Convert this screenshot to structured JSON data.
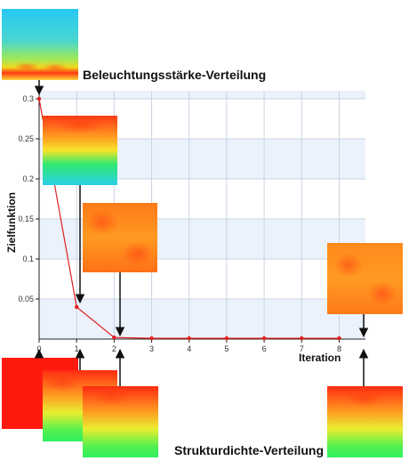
{
  "chart_data": {
    "type": "line",
    "xlabel": "Iteration",
    "ylabel": "Zielfunktion",
    "xlim": [
      0,
      8.7
    ],
    "ylim": [
      0,
      0.31
    ],
    "grid": true,
    "x_ticks": [
      "0",
      "1",
      "2",
      "3",
      "4",
      "5",
      "6",
      "7",
      "8"
    ],
    "y_ticks": [
      "0.05",
      "0.1",
      "0.15",
      "0.2",
      "0.25",
      "0.3"
    ],
    "series": [
      {
        "x": [
          0,
          1,
          2,
          3,
          4,
          5,
          6,
          7,
          8
        ],
        "values": [
          0.3,
          0.04,
          0.002,
          0.001,
          0.001,
          0.001,
          0.001,
          0.001,
          0.001
        ],
        "color": "#e02020"
      }
    ],
    "annotations": [
      {
        "text": "Beleuchtungsstärke-Verteilung"
      },
      {
        "text": "Strukturdichte-Verteilung"
      }
    ],
    "colors": {
      "band": "#ebf2fb",
      "grid": "#c8d4e4",
      "line": "#e02020"
    }
  }
}
